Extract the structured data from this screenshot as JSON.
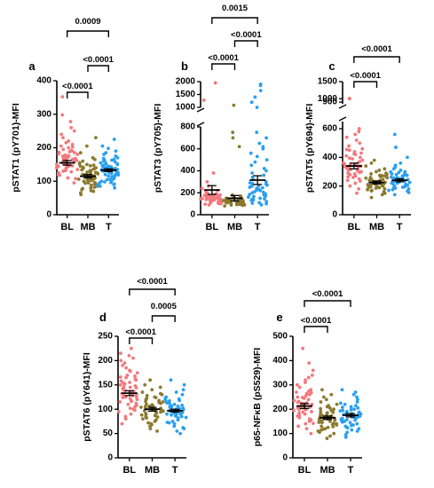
{
  "figure": {
    "colors": {
      "BL": "#f4787c",
      "MB": "#8c7a2e",
      "T": "#2a9ff0",
      "axis": "#000000"
    },
    "group_labels": [
      "BL",
      "MB",
      "T"
    ]
  },
  "chart_data": [
    {
      "type": "scatter",
      "panel": "a",
      "ylabel": "pSTAT1 (pY701)-MFI",
      "categories": [
        "BL",
        "MB",
        "T"
      ],
      "ylim": [
        0,
        400
      ],
      "yticks": [
        "0",
        "100",
        "200",
        "300",
        "400"
      ],
      "series": [
        {
          "name": "BL",
          "mean": 155,
          "sem": 7,
          "values": [
            95,
            110,
            120,
            125,
            130,
            135,
            138,
            140,
            142,
            145,
            146,
            148,
            150,
            150,
            152,
            154,
            155,
            156,
            158,
            160,
            160,
            162,
            164,
            165,
            166,
            168,
            170,
            172,
            174,
            175,
            178,
            180,
            182,
            185,
            188,
            190,
            195,
            200,
            205,
            210,
            215,
            220,
            230,
            240,
            250,
            260,
            278,
            298,
            352,
            118,
            128,
            144,
            158,
            168,
            176,
            186,
            192,
            202,
            108,
            132
          ]
        },
        {
          "name": "MB",
          "mean": 115,
          "sem": 5,
          "values": [
            60,
            65,
            70,
            75,
            78,
            80,
            85,
            88,
            90,
            92,
            95,
            96,
            98,
            100,
            102,
            104,
            105,
            106,
            108,
            110,
            110,
            112,
            114,
            115,
            116,
            118,
            120,
            122,
            124,
            125,
            126,
            128,
            130,
            132,
            134,
            136,
            138,
            140,
            142,
            145,
            148,
            150,
            155,
            160,
            165,
            170,
            185,
            205,
            230,
            82,
            94,
            103,
            113,
            119,
            127,
            139,
            146,
            72,
            152
          ]
        },
        {
          "name": "T",
          "mean": 133,
          "sem": 4,
          "values": [
            80,
            85,
            88,
            90,
            95,
            98,
            100,
            102,
            105,
            108,
            110,
            112,
            115,
            116,
            118,
            120,
            122,
            124,
            125,
            126,
            128,
            130,
            130,
            132,
            134,
            135,
            136,
            138,
            140,
            140,
            142,
            144,
            145,
            146,
            148,
            150,
            152,
            155,
            158,
            160,
            162,
            165,
            168,
            170,
            175,
            180,
            185,
            190,
            198,
            205,
            225,
            92,
            106,
            119,
            129,
            137,
            143,
            153,
            163,
            96,
            114
          ]
        }
      ],
      "comparisons": [
        {
          "groups": [
            "BL",
            "MB"
          ],
          "p": "<0.0001"
        },
        {
          "groups": [
            "MB",
            "T"
          ],
          "p": "<0.0001"
        },
        {
          "groups": [
            "BL",
            "T"
          ],
          "p": "0.0009"
        }
      ]
    },
    {
      "type": "scatter",
      "panel": "b",
      "ylabel": "pSTAT3 (pY705)-MFI",
      "categories": [
        "BL",
        "MB",
        "T"
      ],
      "yaxis_break": {
        "lower": [
          0,
          800
        ],
        "upper": [
          1000,
          2000
        ]
      },
      "yticks": [
        "0",
        "200",
        "400",
        "600",
        "800",
        "1000",
        "1500",
        "2000"
      ],
      "series": [
        {
          "name": "BL",
          "mean": 225,
          "sem": 40,
          "values": [
            90,
            100,
            105,
            110,
            115,
            120,
            120,
            125,
            128,
            130,
            132,
            135,
            138,
            140,
            142,
            145,
            148,
            150,
            152,
            155,
            158,
            160,
            162,
            165,
            168,
            170,
            175,
            180,
            185,
            190,
            195,
            200,
            210,
            220,
            240,
            260,
            300,
            380,
            1280,
            1950,
            112,
            118,
            127,
            136,
            146,
            156,
            166,
            176,
            186,
            102,
            96,
            108,
            134
          ]
        },
        {
          "name": "MB",
          "mean": 150,
          "sem": 25,
          "values": [
            80,
            85,
            90,
            92,
            95,
            98,
            100,
            102,
            105,
            108,
            110,
            112,
            114,
            115,
            116,
            118,
            120,
            120,
            122,
            124,
            125,
            126,
            128,
            130,
            132,
            135,
            138,
            140,
            145,
            150,
            155,
            160,
            170,
            180,
            620,
            700,
            750,
            1080,
            88,
            96,
            104,
            111,
            117,
            123,
            129,
            136,
            142,
            94
          ]
        },
        {
          "name": "T",
          "mean": 315,
          "sem": 40,
          "values": [
            90,
            100,
            110,
            120,
            130,
            140,
            150,
            160,
            170,
            180,
            190,
            200,
            210,
            220,
            230,
            240,
            250,
            260,
            270,
            280,
            290,
            300,
            320,
            340,
            360,
            380,
            400,
            420,
            450,
            480,
            500,
            530,
            560,
            600,
            620,
            650,
            700,
            750,
            1000,
            1200,
            1400,
            1650,
            1850,
            1900,
            145,
            165,
            185,
            205,
            225,
            245,
            265,
            285,
            105,
            135
          ]
        }
      ],
      "comparisons": [
        {
          "groups": [
            "BL",
            "MB"
          ],
          "p": "<0.0001"
        },
        {
          "groups": [
            "MB",
            "T"
          ],
          "p": "<0.0001"
        },
        {
          "groups": [
            "BL",
            "T"
          ],
          "p": "0.0015"
        }
      ]
    },
    {
      "type": "scatter",
      "panel": "c",
      "ylabel": "pSTAT5 (pY694)-MFI",
      "categories": [
        "BL",
        "MB",
        "T"
      ],
      "yaxis_break": {
        "lower": [
          0,
          650
        ],
        "upper": [
          850,
          1500
        ]
      },
      "yticks": [
        "0",
        "200",
        "400",
        "600",
        "900",
        "1000",
        "1500"
      ],
      "series": [
        {
          "name": "BL",
          "mean": 340,
          "sem": 20,
          "values": [
            150,
            180,
            200,
            220,
            240,
            250,
            260,
            270,
            280,
            290,
            300,
            305,
            310,
            315,
            320,
            325,
            330,
            335,
            340,
            345,
            350,
            355,
            360,
            370,
            380,
            390,
            400,
            410,
            420,
            430,
            440,
            450,
            460,
            480,
            500,
            520,
            540,
            560,
            580,
            600,
            1000,
            1010,
            265,
            285,
            312,
            338,
            362,
            395,
            425,
            455,
            235,
            295
          ]
        },
        {
          "name": "MB",
          "mean": 225,
          "sem": 10,
          "values": [
            120,
            140,
            150,
            160,
            170,
            175,
            180,
            185,
            190,
            195,
            200,
            205,
            210,
            212,
            215,
            218,
            220,
            222,
            225,
            228,
            230,
            232,
            235,
            238,
            240,
            245,
            250,
            255,
            260,
            265,
            270,
            275,
            280,
            290,
            300,
            310,
            320,
            340,
            360,
            380,
            198,
            208,
            226,
            246,
            258,
            272,
            285,
            166,
            188
          ]
        },
        {
          "name": "T",
          "mean": 240,
          "sem": 10,
          "values": [
            140,
            155,
            165,
            175,
            180,
            185,
            190,
            195,
            200,
            205,
            210,
            215,
            220,
            225,
            228,
            230,
            235,
            238,
            240,
            245,
            250,
            252,
            255,
            258,
            260,
            265,
            270,
            275,
            280,
            285,
            290,
            295,
            300,
            310,
            320,
            330,
            345,
            360,
            400,
            470,
            560,
            192,
            212,
            232,
            248,
            262,
            278,
            298,
            170,
            222
          ]
        }
      ],
      "comparisons": [
        {
          "groups": [
            "BL",
            "MB"
          ],
          "p": "<0.0001"
        },
        {
          "groups": [
            "BL",
            "T"
          ],
          "p": "<0.0001"
        }
      ]
    },
    {
      "type": "scatter",
      "panel": "d",
      "ylabel": "pSTAT6 (pY641)-MFI",
      "categories": [
        "BL",
        "MB",
        "T"
      ],
      "ylim": [
        0,
        250
      ],
      "yticks": [
        "0",
        "50",
        "100",
        "150",
        "200",
        "250"
      ],
      "series": [
        {
          "name": "BL",
          "mean": 133,
          "sem": 5,
          "values": [
            70,
            80,
            85,
            90,
            95,
            100,
            105,
            108,
            110,
            112,
            115,
            118,
            120,
            122,
            125,
            126,
            128,
            130,
            130,
            132,
            134,
            135,
            136,
            138,
            140,
            142,
            145,
            146,
            148,
            150,
            152,
            155,
            158,
            160,
            162,
            165,
            168,
            170,
            175,
            180,
            185,
            190,
            195,
            200,
            205,
            210,
            215,
            225,
            98,
            116,
            124,
            137,
            144,
            154,
            166,
            178,
            102,
            129
          ]
        },
        {
          "name": "MB",
          "mean": 100,
          "sem": 4,
          "values": [
            55,
            60,
            65,
            70,
            72,
            75,
            78,
            80,
            82,
            85,
            88,
            90,
            92,
            94,
            95,
            96,
            98,
            100,
            100,
            102,
            104,
            105,
            106,
            108,
            110,
            112,
            114,
            115,
            118,
            120,
            122,
            125,
            128,
            130,
            135,
            140,
            145,
            150,
            160,
            68,
            84,
            91,
            97,
            103,
            109,
            116,
            124,
            132,
            87
          ]
        },
        {
          "name": "T",
          "mean": 97,
          "sem": 3,
          "values": [
            50,
            55,
            60,
            65,
            70,
            72,
            75,
            78,
            80,
            82,
            85,
            88,
            90,
            90,
            92,
            94,
            95,
            96,
            98,
            100,
            100,
            102,
            104,
            105,
            106,
            108,
            110,
            112,
            115,
            118,
            120,
            122,
            125,
            130,
            135,
            140,
            150,
            160,
            73,
            83,
            89,
            93,
            99,
            107,
            113,
            121,
            62,
            86,
            101,
            117
          ]
        }
      ],
      "comparisons": [
        {
          "groups": [
            "BL",
            "MB"
          ],
          "p": "<0.0001"
        },
        {
          "groups": [
            "MB",
            "T"
          ],
          "p": "0.0005"
        },
        {
          "groups": [
            "BL",
            "T"
          ],
          "p": "<0.0001"
        }
      ]
    },
    {
      "type": "scatter",
      "panel": "e",
      "ylabel": "p65-NFκB (pS529)-MFI",
      "categories": [
        "BL",
        "MB",
        "T"
      ],
      "ylim": [
        0,
        500
      ],
      "yticks": [
        "0",
        "100",
        "200",
        "300",
        "400",
        "500"
      ],
      "series": [
        {
          "name": "BL",
          "mean": 213,
          "sem": 10,
          "values": [
            100,
            120,
            130,
            140,
            150,
            160,
            165,
            170,
            175,
            180,
            185,
            190,
            195,
            200,
            202,
            205,
            208,
            210,
            212,
            215,
            218,
            220,
            222,
            225,
            228,
            230,
            235,
            240,
            245,
            250,
            255,
            260,
            265,
            270,
            275,
            280,
            290,
            300,
            310,
            320,
            330,
            340,
            360,
            390,
            450,
            155,
            172,
            188,
            198,
            214,
            232,
            248,
            268,
            142,
            226
          ]
        },
        {
          "name": "MB",
          "mean": 165,
          "sem": 7,
          "values": [
            80,
            90,
            100,
            110,
            115,
            120,
            125,
            130,
            135,
            138,
            140,
            142,
            145,
            148,
            150,
            152,
            155,
            158,
            160,
            162,
            165,
            168,
            170,
            172,
            175,
            178,
            180,
            185,
            190,
            195,
            200,
            205,
            210,
            215,
            220,
            230,
            240,
            250,
            260,
            280,
            105,
            128,
            146,
            157,
            167,
            177,
            187,
            202,
            118,
            163
          ]
        },
        {
          "name": "T",
          "mean": 175,
          "sem": 7,
          "values": [
            85,
            95,
            105,
            115,
            120,
            125,
            130,
            135,
            140,
            145,
            150,
            152,
            155,
            158,
            160,
            162,
            165,
            168,
            170,
            172,
            175,
            178,
            180,
            182,
            185,
            188,
            190,
            195,
            200,
            205,
            210,
            215,
            220,
            225,
            230,
            240,
            250,
            260,
            270,
            280,
            110,
            133,
            147,
            163,
            173,
            183,
            193,
            208,
            123,
            157,
            198
          ]
        }
      ],
      "comparisons": [
        {
          "groups": [
            "BL",
            "MB"
          ],
          "p": "<0.0001"
        },
        {
          "groups": [
            "BL",
            "T"
          ],
          "p": "<0.0001"
        }
      ]
    }
  ]
}
